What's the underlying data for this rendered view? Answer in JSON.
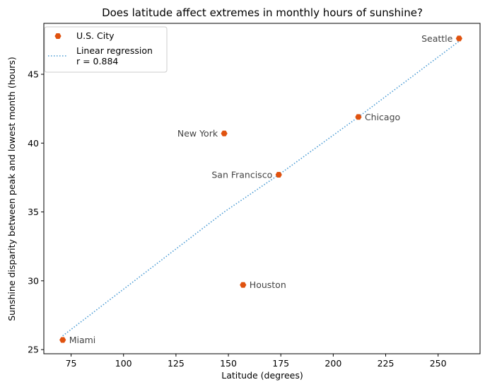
{
  "chart_data": {
    "type": "scatter",
    "title": "Does latitude affect extremes in monthly hours of sunshine?",
    "xlabel": "Latitude (degrees)",
    "ylabel": "Sunshine disparity between peak and lowest month (hours)",
    "xlim": [
      62,
      270
    ],
    "ylim": [
      24.7,
      48.7
    ],
    "xticks": [
      75,
      100,
      125,
      150,
      175,
      200,
      225,
      250
    ],
    "yticks": [
      25,
      30,
      35,
      40,
      45
    ],
    "grid": false,
    "legend_position": "top-left",
    "series": [
      {
        "name": "U.S. City",
        "color": "#e0520f",
        "marker": "hexagon",
        "points": [
          {
            "label": "Miami",
            "x": 71,
            "y": 25.7,
            "label_side": "right"
          },
          {
            "label": "New York",
            "x": 148,
            "y": 40.7,
            "label_side": "left"
          },
          {
            "label": "San Francisco",
            "x": 174,
            "y": 37.7,
            "label_side": "left"
          },
          {
            "label": "Houston",
            "x": 157,
            "y": 29.7,
            "label_side": "right"
          },
          {
            "label": "Chicago",
            "x": 212,
            "y": 41.9,
            "label_side": "right"
          },
          {
            "label": "Seattle",
            "x": 260,
            "y": 47.6,
            "label_side": "left"
          }
        ]
      }
    ],
    "regression": {
      "name_line1": "Linear regression",
      "name_line2": "r = 0.884",
      "color": "#4a9bd4",
      "style": "dotted",
      "path": [
        {
          "x": 71,
          "y": 26.0
        },
        {
          "x": 148,
          "y": 35.0
        },
        {
          "x": 174,
          "y": 37.7
        },
        {
          "x": 212,
          "y": 41.9
        },
        {
          "x": 260,
          "y": 47.4
        }
      ]
    }
  }
}
